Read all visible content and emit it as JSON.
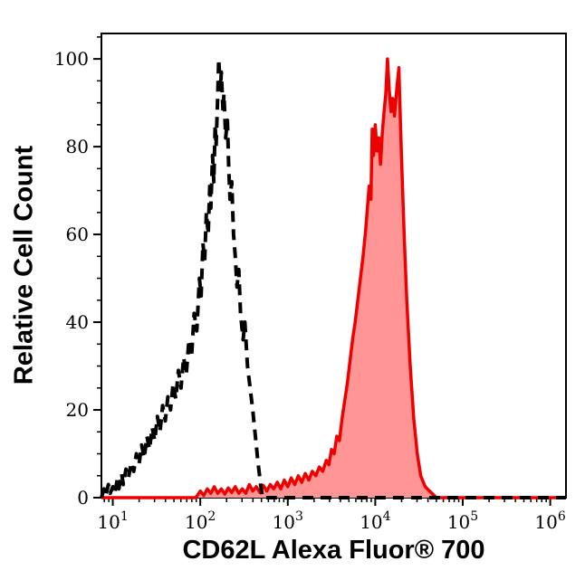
{
  "figure": {
    "background": "#ffffff"
  },
  "chart_data": {
    "type": "area",
    "title": "",
    "xlabel": "CD62L Alexa Fluor® 700",
    "ylabel": "Relative Cell Count",
    "x_scale": "log",
    "x_domain_decades": [
      0.87,
      6.18
    ],
    "x_major_tick_exponents": [
      1,
      2,
      3,
      4,
      5,
      6
    ],
    "x_tick_base": "10",
    "y_domain": [
      0,
      105.8
    ],
    "y_major_ticks": [
      0,
      20,
      40,
      60,
      80,
      100
    ],
    "y_minor_tick_step": 5,
    "grid": false,
    "legend": "none",
    "frame_color": "#000000",
    "series": [
      {
        "name": "red-filled-histogram",
        "line_style": "solid",
        "stroke": "#ee0000",
        "fill": "#ff9595",
        "points": [
          [
            0.87,
            0
          ],
          [
            1.95,
            0
          ],
          [
            2.0,
            1.5
          ],
          [
            2.04,
            0.5
          ],
          [
            2.08,
            2
          ],
          [
            2.12,
            1
          ],
          [
            2.16,
            2.5
          ],
          [
            2.2,
            1
          ],
          [
            2.24,
            2
          ],
          [
            2.28,
            0.8
          ],
          [
            2.32,
            2.2
          ],
          [
            2.36,
            1.2
          ],
          [
            2.4,
            2.5
          ],
          [
            2.44,
            1
          ],
          [
            2.48,
            2
          ],
          [
            2.52,
            1
          ],
          [
            2.56,
            3
          ],
          [
            2.6,
            1.5
          ],
          [
            2.64,
            2.5
          ],
          [
            2.68,
            1.2
          ],
          [
            2.72,
            2.8
          ],
          [
            2.76,
            1.5
          ],
          [
            2.8,
            3
          ],
          [
            2.84,
            2
          ],
          [
            2.88,
            3.5
          ],
          [
            2.92,
            2
          ],
          [
            2.96,
            4
          ],
          [
            3.0,
            2.5
          ],
          [
            3.04,
            4.5
          ],
          [
            3.08,
            3
          ],
          [
            3.12,
            5
          ],
          [
            3.16,
            3.5
          ],
          [
            3.2,
            5.5
          ],
          [
            3.24,
            4
          ],
          [
            3.28,
            6
          ],
          [
            3.32,
            5
          ],
          [
            3.36,
            7
          ],
          [
            3.4,
            6
          ],
          [
            3.44,
            8.5
          ],
          [
            3.47,
            7.5
          ],
          [
            3.5,
            11
          ],
          [
            3.53,
            10
          ],
          [
            3.56,
            14
          ],
          [
            3.59,
            13
          ],
          [
            3.62,
            18
          ],
          [
            3.65,
            22
          ],
          [
            3.68,
            26
          ],
          [
            3.71,
            31
          ],
          [
            3.74,
            36
          ],
          [
            3.77,
            40
          ],
          [
            3.8,
            45
          ],
          [
            3.83,
            50
          ],
          [
            3.86,
            55
          ],
          [
            3.89,
            61
          ],
          [
            3.91,
            66
          ],
          [
            3.93,
            71
          ],
          [
            3.95,
            68
          ],
          [
            3.965,
            84
          ],
          [
            3.98,
            78
          ],
          [
            4.0,
            85
          ],
          [
            4.02,
            79
          ],
          [
            4.04,
            82
          ],
          [
            4.06,
            76
          ],
          [
            4.08,
            83
          ],
          [
            4.1,
            88
          ],
          [
            4.12,
            92
          ],
          [
            4.14,
            100
          ],
          [
            4.16,
            93
          ],
          [
            4.18,
            88
          ],
          [
            4.2,
            91
          ],
          [
            4.22,
            87
          ],
          [
            4.25,
            94
          ],
          [
            4.27,
            98
          ],
          [
            4.29,
            84
          ],
          [
            4.31,
            72
          ],
          [
            4.33,
            60
          ],
          [
            4.36,
            45
          ],
          [
            4.4,
            30
          ],
          [
            4.44,
            18
          ],
          [
            4.48,
            10
          ],
          [
            4.52,
            5
          ],
          [
            4.57,
            2.5
          ],
          [
            4.62,
            1.5
          ],
          [
            4.7,
            0
          ],
          [
            6.18,
            0
          ]
        ]
      },
      {
        "name": "black-dashed-histogram",
        "line_style": "dashed",
        "stroke": "#000000",
        "fill": "none",
        "points": [
          [
            0.87,
            0
          ],
          [
            0.9,
            2
          ],
          [
            0.92,
            0.5
          ],
          [
            0.95,
            3
          ],
          [
            0.97,
            1
          ],
          [
            1.0,
            2.5
          ],
          [
            1.02,
            0.8
          ],
          [
            1.05,
            4
          ],
          [
            1.07,
            2
          ],
          [
            1.1,
            5.5
          ],
          [
            1.12,
            3
          ],
          [
            1.15,
            6.5
          ],
          [
            1.18,
            4.5
          ],
          [
            1.21,
            8
          ],
          [
            1.24,
            6
          ],
          [
            1.27,
            10
          ],
          [
            1.3,
            7.5
          ],
          [
            1.33,
            12
          ],
          [
            1.36,
            9
          ],
          [
            1.39,
            14
          ],
          [
            1.42,
            11
          ],
          [
            1.45,
            16
          ],
          [
            1.48,
            13
          ],
          [
            1.51,
            18.5
          ],
          [
            1.54,
            15
          ],
          [
            1.57,
            21
          ],
          [
            1.6,
            17.5
          ],
          [
            1.63,
            23
          ],
          [
            1.66,
            20
          ],
          [
            1.69,
            26
          ],
          [
            1.72,
            22.5
          ],
          [
            1.75,
            29
          ],
          [
            1.78,
            25
          ],
          [
            1.81,
            32
          ],
          [
            1.84,
            28
          ],
          [
            1.87,
            36
          ],
          [
            1.9,
            32
          ],
          [
            1.93,
            42
          ],
          [
            1.96,
            38
          ],
          [
            1.99,
            50
          ],
          [
            2.01,
            46
          ],
          [
            2.03,
            58
          ],
          [
            2.05,
            54
          ],
          [
            2.07,
            65
          ],
          [
            2.09,
            60
          ],
          [
            2.11,
            72
          ],
          [
            2.12,
            66
          ],
          [
            2.14,
            78
          ],
          [
            2.155,
            72
          ],
          [
            2.17,
            85
          ],
          [
            2.18,
            80
          ],
          [
            2.2,
            92
          ],
          [
            2.21,
            100
          ],
          [
            2.23,
            93
          ],
          [
            2.24,
            97
          ],
          [
            2.26,
            88
          ],
          [
            2.27,
            92
          ],
          [
            2.29,
            82
          ],
          [
            2.31,
            86
          ],
          [
            2.325,
            75
          ],
          [
            2.34,
            68
          ],
          [
            2.36,
            72
          ],
          [
            2.38,
            60
          ],
          [
            2.4,
            55
          ],
          [
            2.42,
            48
          ],
          [
            2.44,
            52
          ],
          [
            2.46,
            42
          ],
          [
            2.49,
            36
          ],
          [
            2.51,
            40
          ],
          [
            2.54,
            30
          ],
          [
            2.57,
            25
          ],
          [
            2.6,
            20
          ],
          [
            2.63,
            14
          ],
          [
            2.66,
            8
          ],
          [
            2.69,
            3
          ],
          [
            2.71,
            0
          ],
          [
            6.18,
            0
          ]
        ]
      }
    ]
  }
}
